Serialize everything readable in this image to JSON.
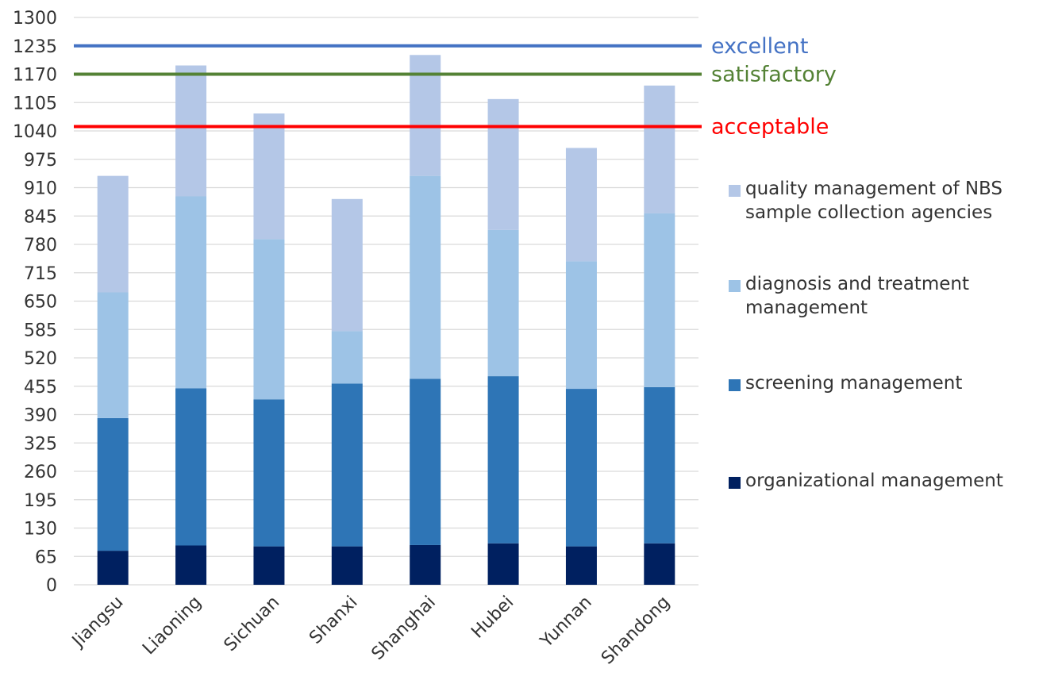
{
  "chart_data": {
    "type": "bar",
    "stacked": true,
    "categories": [
      "Jiangsu",
      "Liaoning",
      "Sichuan",
      "Shanxi",
      "Shanghai",
      "Hubei",
      "Yunnan",
      "Shandong"
    ],
    "series": [
      {
        "name": "organizational management",
        "color": "#002060",
        "values": [
          78,
          90,
          88,
          88,
          91,
          95,
          88,
          95
        ]
      },
      {
        "name": "screening management",
        "color": "#2E75B6",
        "values": [
          304,
          360,
          337,
          373,
          381,
          383,
          361,
          358
        ]
      },
      {
        "name": "diagnosis and treatment management",
        "color": "#9DC3E6",
        "values": [
          288,
          440,
          367,
          120,
          465,
          335,
          292,
          398
        ]
      },
      {
        "name": "quality management of NBS sample collection agencies",
        "color": "#B4C7E7",
        "values": [
          267,
          300,
          288,
          303,
          277,
          300,
          260,
          293
        ]
      }
    ],
    "ylim": [
      0,
      1300
    ],
    "yticks": [
      0,
      65,
      130,
      195,
      260,
      325,
      390,
      455,
      520,
      585,
      650,
      715,
      780,
      845,
      910,
      975,
      1040,
      1105,
      1170,
      1235,
      1300
    ],
    "reference_lines": [
      {
        "label": "excellent",
        "value": 1235,
        "color": "#4472C4"
      },
      {
        "label": "satisfactory",
        "value": 1170,
        "color": "#548235"
      },
      {
        "label": "acceptable",
        "value": 1050,
        "color": "#FF0000"
      }
    ],
    "grid": true,
    "legend_position": "right"
  }
}
